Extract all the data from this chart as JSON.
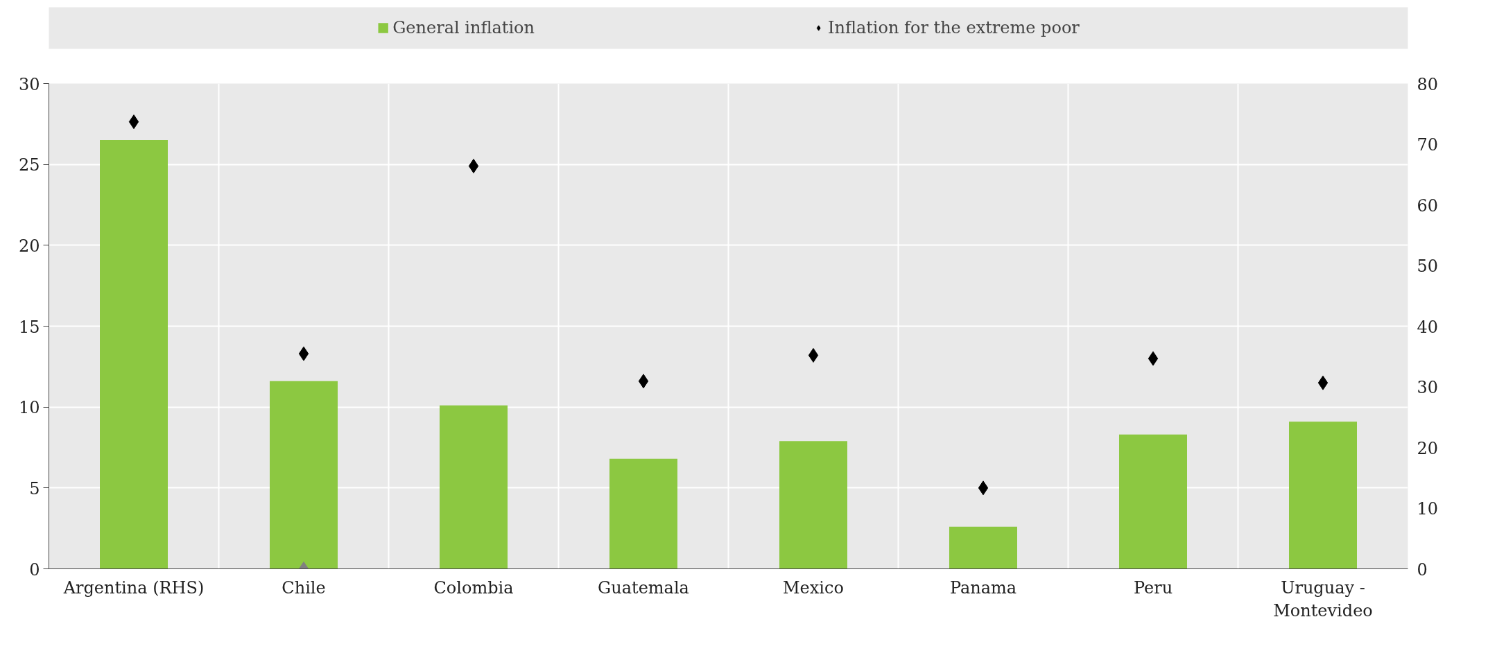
{
  "chart_data": {
    "type": "bar",
    "categories": [
      "Argentina (RHS)",
      "Chile",
      "Colombia",
      "Guatemala",
      "Mexico",
      "Panama",
      "Peru",
      "Uruguay - Montevideo"
    ],
    "series": [
      {
        "name": "General inflation",
        "color": "#8cc841",
        "values": [
          null,
          11.6,
          10.1,
          6.8,
          7.9,
          2.6,
          8.3,
          9.1
        ]
      },
      {
        "axis": "y2",
        "color": "#8cc841",
        "values": [
          70.7,
          null,
          null,
          null,
          null,
          null,
          null,
          null
        ]
      },
      {
        "name": "Inflation for the extreme poor",
        "type": "scatter",
        "marker": "diamond",
        "color": "#000000",
        "values": [
          null,
          13.3,
          24.9,
          11.6,
          13.2,
          5.0,
          13.0,
          11.5
        ]
      },
      {
        "type": "scatter",
        "axis": "y2",
        "marker": "diamond",
        "color": "#000000",
        "values": [
          73.7,
          null,
          null,
          null,
          null,
          null,
          null,
          null
        ]
      },
      {
        "type": "scatter",
        "marker": "diamond",
        "color": "#808080",
        "values": [
          null,
          0,
          null,
          null,
          null,
          null,
          null,
          null
        ]
      }
    ],
    "ylim": [
      0,
      30
    ],
    "yticks": [
      0,
      5,
      10,
      15,
      20,
      25,
      30
    ],
    "y2lim": [
      0,
      80
    ],
    "y2ticks": [
      0,
      10,
      20,
      30,
      40,
      50,
      60,
      70,
      80
    ],
    "grid": true,
    "legend": "top"
  }
}
